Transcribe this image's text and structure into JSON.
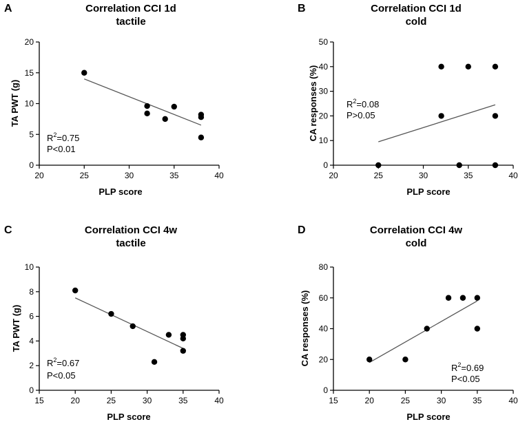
{
  "chart_data": [
    {
      "panel": "A",
      "type": "scatter",
      "title": "Correlation CCI 1d",
      "subtitle": "tactile",
      "xlabel": "PLP score",
      "ylabel": "TA PWT (g)",
      "xlim": [
        20,
        40
      ],
      "ylim": [
        0,
        20
      ],
      "xticks": [
        20,
        25,
        30,
        35,
        40
      ],
      "yticks": [
        0,
        5,
        10,
        15,
        20
      ],
      "x": [
        25,
        32,
        32,
        34,
        35,
        38,
        38,
        38
      ],
      "y": [
        15,
        9.6,
        8.4,
        7.5,
        9.5,
        8.2,
        7.8,
        4.5
      ],
      "fit": {
        "x": [
          25,
          38
        ],
        "y": [
          14.0,
          6.5
        ]
      },
      "r2_label": "R",
      "r2_sup": "2",
      "r2_value": "=0.75",
      "p_text": "P<0.01"
    },
    {
      "panel": "B",
      "type": "scatter",
      "title": "Correlation CCI 1d",
      "subtitle": "cold",
      "xlabel": "PLP score",
      "ylabel": "CA responses (%)",
      "xlim": [
        20,
        40
      ],
      "ylim": [
        0,
        50
      ],
      "xticks": [
        20,
        25,
        30,
        35,
        40
      ],
      "yticks": [
        0,
        10,
        20,
        30,
        40,
        50
      ],
      "x": [
        25,
        32,
        32,
        34,
        35,
        38,
        38,
        38
      ],
      "y": [
        0,
        40,
        20,
        0,
        40,
        40,
        20,
        0
      ],
      "fit": {
        "x": [
          25,
          38
        ],
        "y": [
          9.5,
          24.5
        ]
      },
      "r2_label": "R",
      "r2_sup": "2",
      "r2_value": "=0.08",
      "p_text": "P>0.05"
    },
    {
      "panel": "C",
      "type": "scatter",
      "title": "Correlation CCI 4w",
      "subtitle": "tactile",
      "xlabel": "PLP score",
      "ylabel": "TA PWT (g)",
      "xlim": [
        15,
        40
      ],
      "ylim": [
        0,
        10
      ],
      "xticks": [
        15,
        20,
        25,
        30,
        35,
        40
      ],
      "yticks": [
        0,
        2,
        4,
        6,
        8,
        10
      ],
      "x": [
        20,
        25,
        28,
        31,
        33,
        35,
        35,
        35
      ],
      "y": [
        8.1,
        6.2,
        5.2,
        2.3,
        4.5,
        4.5,
        4.2,
        3.2
      ],
      "fit": {
        "x": [
          20,
          35
        ],
        "y": [
          7.5,
          3.4
        ]
      },
      "r2_label": "R",
      "r2_sup": "2",
      "r2_value": "=0.67",
      "p_text": "P<0.05"
    },
    {
      "panel": "D",
      "type": "scatter",
      "title": "Correlation CCI 4w",
      "subtitle": "cold",
      "xlabel": "PLP score",
      "ylabel": "CA responses (%)",
      "xlim": [
        15,
        40
      ],
      "ylim": [
        0,
        80
      ],
      "xticks": [
        15,
        20,
        25,
        30,
        35,
        40
      ],
      "yticks": [
        0,
        20,
        40,
        60,
        80
      ],
      "x": [
        20,
        25,
        28,
        31,
        33,
        35,
        35
      ],
      "y": [
        20,
        20,
        40,
        60,
        60,
        60,
        40
      ],
      "fit": {
        "x": [
          20,
          35
        ],
        "y": [
          18,
          58
        ]
      },
      "r2_label": "R",
      "r2_sup": "2",
      "r2_value": "=0.69",
      "p_text": "P<0.05"
    }
  ]
}
